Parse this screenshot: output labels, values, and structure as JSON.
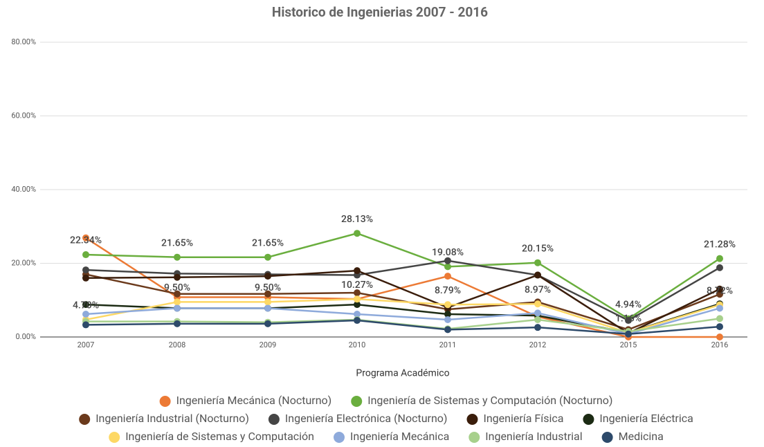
{
  "chart_data": {
    "type": "line",
    "title": "Historico de Ingenierias 2007 - 2016",
    "x_label": "Programa Académico",
    "categories": [
      "2007",
      "2008",
      "2009",
      "2010",
      "2011",
      "2012",
      "2015",
      "2016"
    ],
    "ylim": [
      0,
      80
    ],
    "yticks": [
      {
        "value": 0,
        "label": "0.00%"
      },
      {
        "value": 20,
        "label": "20.00%"
      },
      {
        "value": 40,
        "label": "40.00%"
      },
      {
        "value": 60,
        "label": "60.00%"
      },
      {
        "value": 80,
        "label": "80.00%"
      }
    ],
    "grid": true,
    "legend": "bottom",
    "series": [
      {
        "name": "Ingeniería Mecánica (Nocturno)",
        "color": "#ec7a35",
        "values": [
          26.9,
          10.8,
          10.8,
          10.3,
          16.5,
          5.5,
          0,
          0
        ]
      },
      {
        "name": "Ingeniería de Sistemas y Computación (Nocturno)",
        "color": "#6aae3e",
        "values": [
          22.34,
          21.65,
          21.65,
          28.13,
          19.08,
          20.15,
          4.94,
          21.28
        ],
        "value_labels": [
          "22.34%",
          "21.65%",
          "21.65%",
          "28.13%",
          "19.08%",
          "20.15%",
          "4.94%",
          "21.28%"
        ]
      },
      {
        "name": "Ingeniería Industrial (Nocturno)",
        "color": "#6b3a1c",
        "values": [
          17.0,
          11.7,
          11.7,
          12.0,
          7.5,
          9.5,
          2.0,
          11.6
        ]
      },
      {
        "name": "Ingeniería Electrónica (Nocturno)",
        "color": "#454545",
        "values": [
          18.2,
          17.2,
          17.0,
          16.8,
          20.7,
          16.8,
          4.5,
          18.8
        ]
      },
      {
        "name": "Ingeniería Física",
        "color": "#3a1d0b",
        "values": [
          16.0,
          16.2,
          16.5,
          18.0,
          8.0,
          16.8,
          1.0,
          13.0
        ]
      },
      {
        "name": "Ingeniería Eléctrica",
        "color": "#1c2b14",
        "values": [
          8.8,
          7.8,
          7.8,
          8.8,
          6.2,
          5.8,
          1.2,
          9.0
        ]
      },
      {
        "name": "Ingeniería de Sistemas y Computación",
        "color": "#fdd865",
        "values": [
          4.7,
          9.5,
          9.5,
          10.27,
          8.79,
          8.97,
          1.16,
          8.72
        ],
        "value_labels": [
          "4.70%",
          "9.50%",
          "9.50%",
          "10.27%",
          "8.79%",
          "8.97%",
          "1.16%",
          "8.72%"
        ]
      },
      {
        "name": "Ingeniería Mecánica",
        "color": "#8eaadb",
        "values": [
          6.2,
          7.8,
          7.8,
          6.2,
          4.7,
          6.5,
          0.8,
          7.8
        ]
      },
      {
        "name": "Ingeniería Industrial",
        "color": "#a7d08c",
        "values": [
          4.2,
          4.2,
          4.0,
          4.7,
          2.2,
          4.7,
          1.5,
          5.0
        ]
      },
      {
        "name": "Medicina",
        "color": "#2d4a6a",
        "values": [
          3.3,
          3.6,
          3.6,
          4.5,
          2.0,
          2.6,
          0.8,
          2.8
        ]
      }
    ]
  }
}
